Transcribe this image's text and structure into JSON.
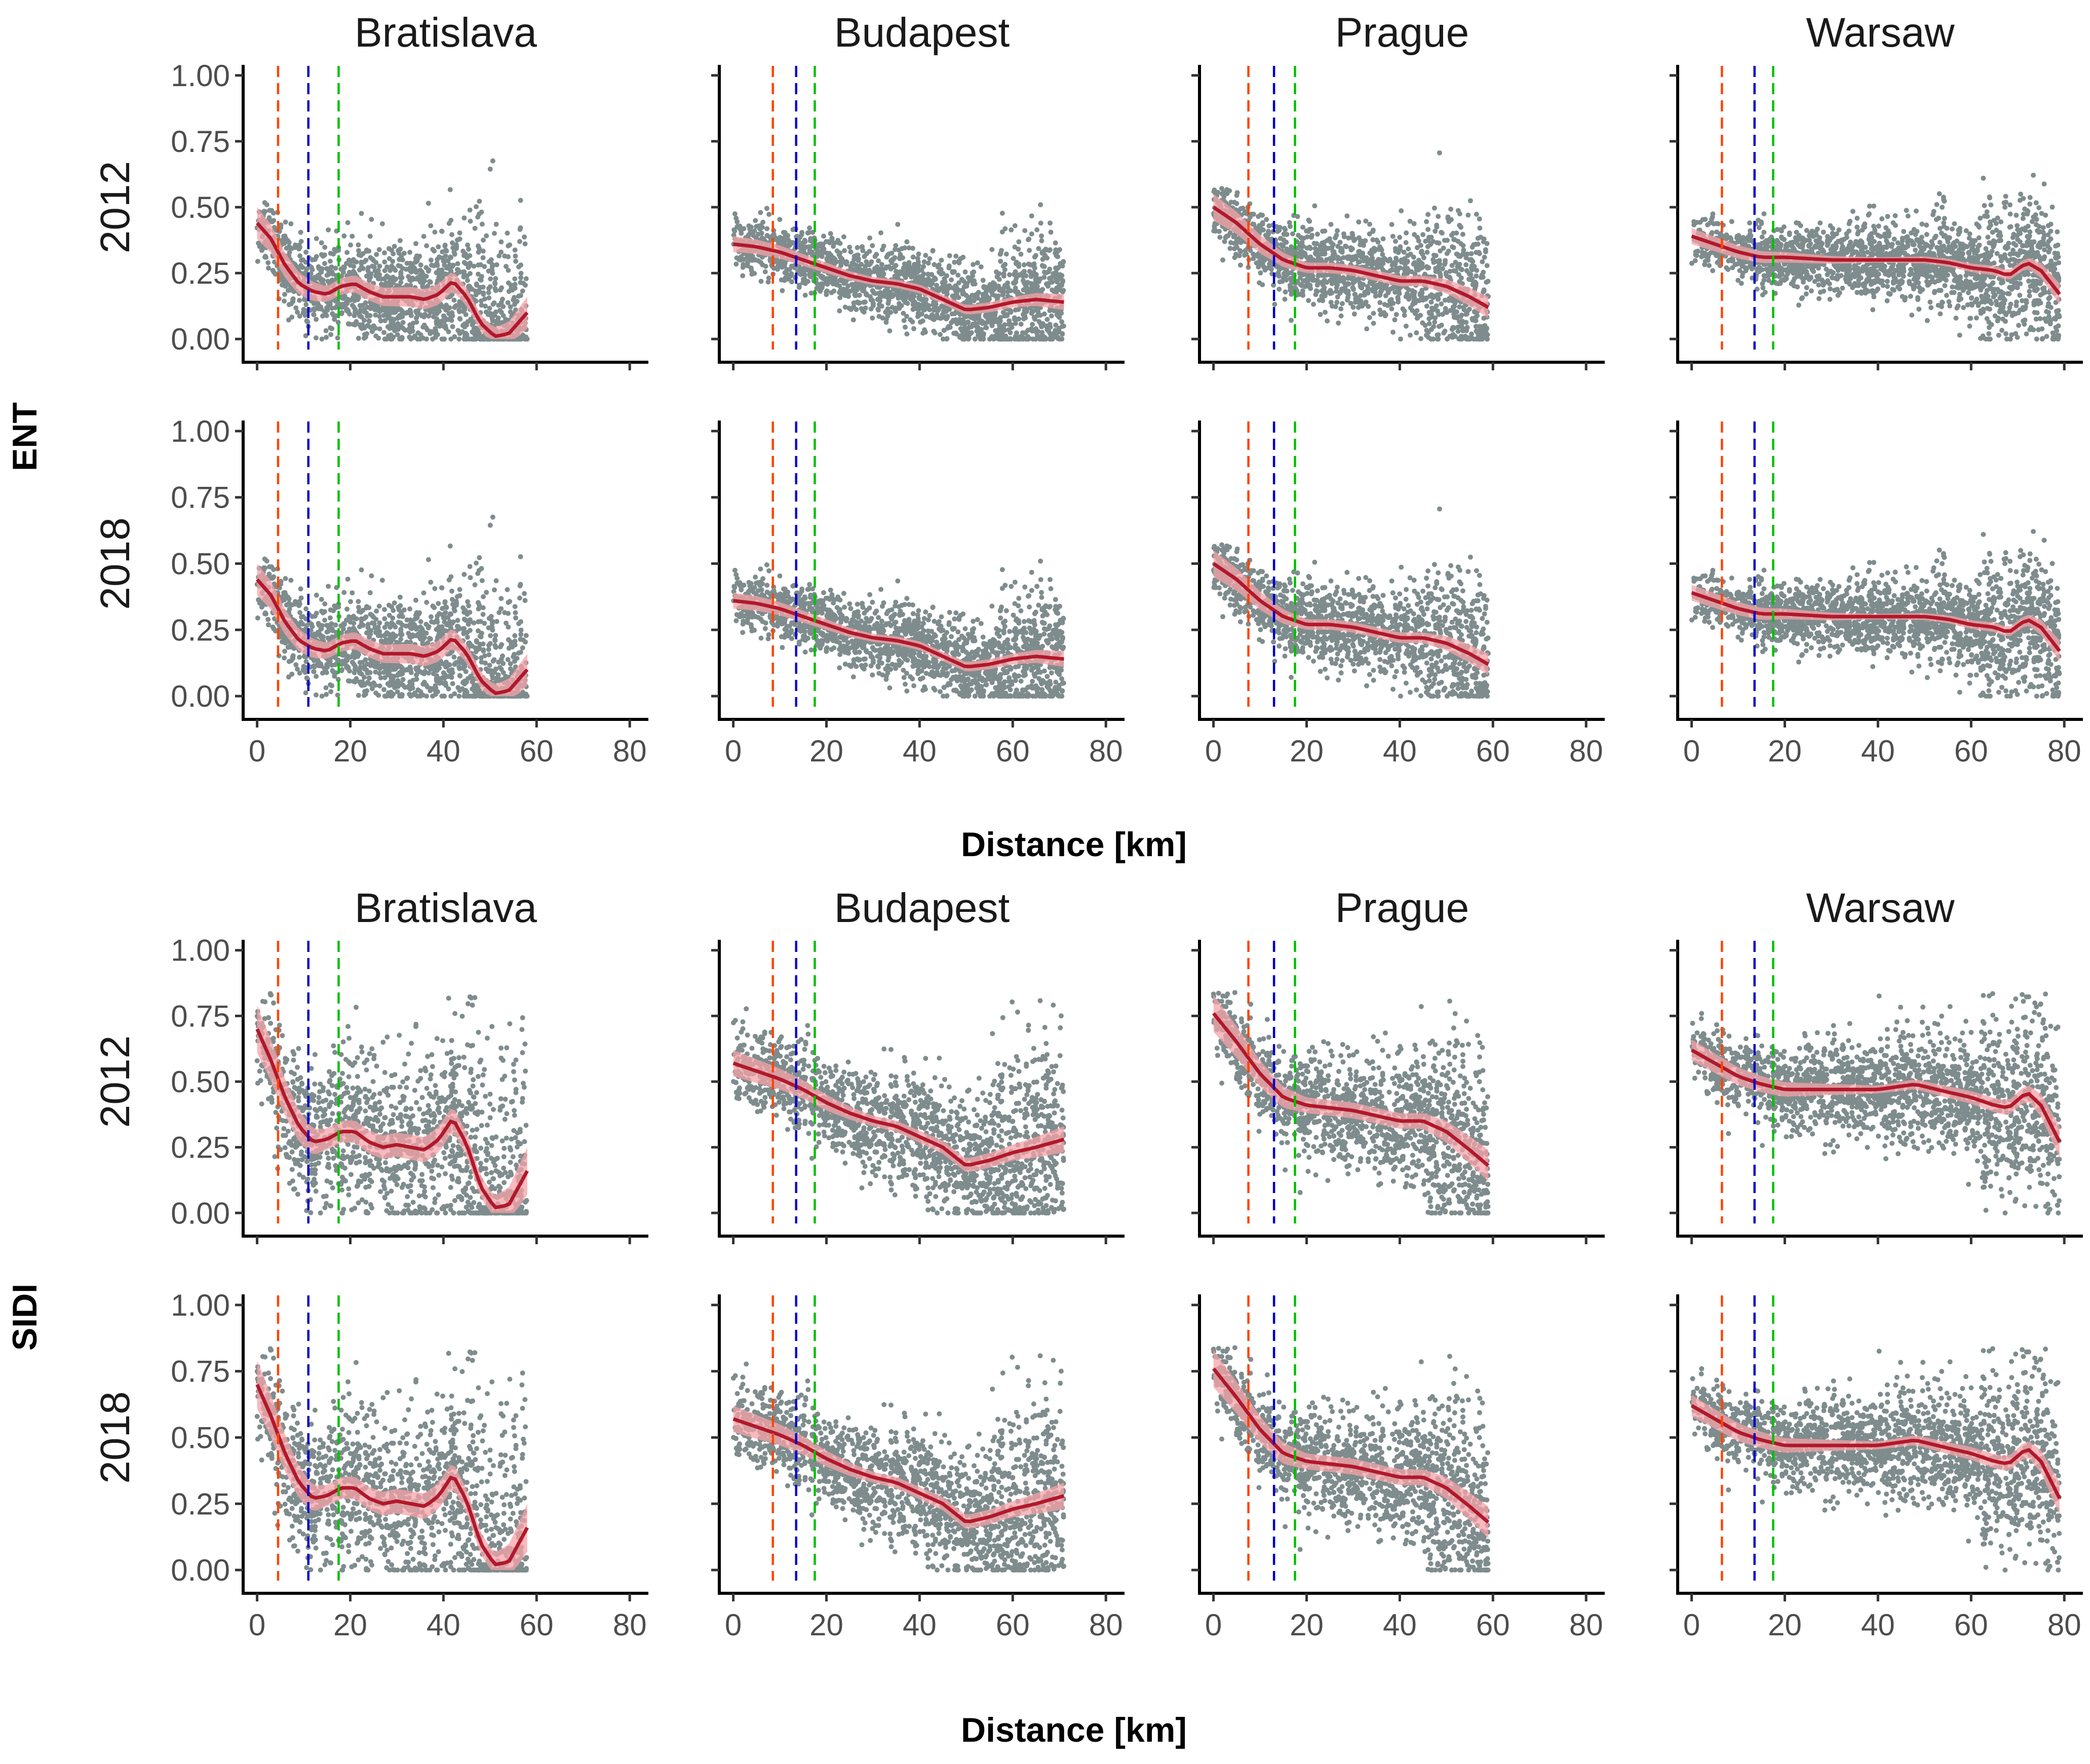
{
  "chart_data": [
    {
      "type": "scatter",
      "metric": "ENT",
      "ylabel": "ENT",
      "xlabel": "Distance [km]",
      "cities": [
        "Bratislava",
        "Budapest",
        "Prague",
        "Warsaw"
      ],
      "years": [
        "2012",
        "2018"
      ],
      "xlim": [
        -3,
        84
      ],
      "ylim": [
        -0.04,
        1.04
      ],
      "x_ticks": [
        0,
        20,
        40,
        60,
        80
      ],
      "x_tick_labels": [
        "0",
        "20",
        "40",
        "60",
        "80"
      ],
      "y_ticks": [
        0,
        0.25,
        0.5,
        0.75,
        1
      ],
      "y_tick_labels": [
        "0.00",
        "0.25",
        "0.50",
        "0.75",
        "1.00"
      ],
      "point_color": "#7f8c8d",
      "smooth_color": "#b2182b",
      "ribbon_color": "#f4a3a8",
      "vline_colors": [
        "#ff4500",
        "#0000cd",
        "#00c000"
      ],
      "panels": [
        {
          "city": "Bratislava",
          "xmax": 58,
          "spread": 0.09,
          "vlines": [
            4.5,
            11,
            17.5
          ],
          "smooth": [
            [
              0,
              0.44
            ],
            [
              3,
              0.38
            ],
            [
              6,
              0.28
            ],
            [
              9,
              0.21
            ],
            [
              12,
              0.18
            ],
            [
              15,
              0.17
            ],
            [
              18,
              0.2
            ],
            [
              21,
              0.21
            ],
            [
              24,
              0.18
            ],
            [
              27,
              0.16
            ],
            [
              30,
              0.16
            ],
            [
              33,
              0.16
            ],
            [
              36,
              0.15
            ],
            [
              39,
              0.17
            ],
            [
              42,
              0.22
            ],
            [
              45,
              0.16
            ],
            [
              48,
              0.06
            ],
            [
              51,
              0.01
            ],
            [
              54,
              0.02
            ],
            [
              58,
              0.1
            ]
          ],
          "ribbon": [
            [
              0,
              0.06
            ],
            [
              15,
              0.03
            ],
            [
              40,
              0.04
            ],
            [
              50,
              0.03
            ],
            [
              58,
              0.06
            ]
          ]
        },
        {
          "city": "Budapest",
          "xmax": 71,
          "spread": 0.06,
          "vlines": [
            8.5,
            13.5,
            17.5
          ],
          "smooth": [
            [
              0,
              0.36
            ],
            [
              5,
              0.35
            ],
            [
              10,
              0.33
            ],
            [
              15,
              0.3
            ],
            [
              20,
              0.27
            ],
            [
              25,
              0.24
            ],
            [
              30,
              0.22
            ],
            [
              35,
              0.21
            ],
            [
              40,
              0.19
            ],
            [
              45,
              0.15
            ],
            [
              50,
              0.11
            ],
            [
              55,
              0.12
            ],
            [
              60,
              0.14
            ],
            [
              65,
              0.15
            ],
            [
              71,
              0.14
            ]
          ],
          "ribbon": [
            [
              0,
              0.03
            ],
            [
              30,
              0.015
            ],
            [
              60,
              0.02
            ],
            [
              71,
              0.03
            ]
          ]
        },
        {
          "city": "Prague",
          "xmax": 59,
          "spread": 0.065,
          "vlines": [
            7.5,
            13,
            17.5
          ],
          "smooth": [
            [
              0,
              0.5
            ],
            [
              5,
              0.44
            ],
            [
              10,
              0.36
            ],
            [
              15,
              0.3
            ],
            [
              20,
              0.27
            ],
            [
              25,
              0.27
            ],
            [
              30,
              0.26
            ],
            [
              35,
              0.24
            ],
            [
              40,
              0.22
            ],
            [
              45,
              0.22
            ],
            [
              50,
              0.2
            ],
            [
              55,
              0.16
            ],
            [
              59,
              0.12
            ]
          ],
          "ribbon": [
            [
              0,
              0.05
            ],
            [
              20,
              0.02
            ],
            [
              45,
              0.02
            ],
            [
              59,
              0.04
            ]
          ]
        },
        {
          "city": "Warsaw",
          "xmax": 79,
          "spread": 0.06,
          "vlines": [
            6.5,
            13.5,
            17.5
          ],
          "smooth": [
            [
              0,
              0.39
            ],
            [
              5,
              0.36
            ],
            [
              10,
              0.33
            ],
            [
              15,
              0.31
            ],
            [
              20,
              0.31
            ],
            [
              30,
              0.3
            ],
            [
              40,
              0.3
            ],
            [
              50,
              0.3
            ],
            [
              55,
              0.29
            ],
            [
              60,
              0.27
            ],
            [
              65,
              0.26
            ],
            [
              68,
              0.24
            ],
            [
              72,
              0.29
            ],
            [
              75,
              0.26
            ],
            [
              79,
              0.17
            ]
          ],
          "ribbon": [
            [
              0,
              0.03
            ],
            [
              40,
              0.01
            ],
            [
              72,
              0.02
            ],
            [
              79,
              0.04
            ]
          ]
        }
      ]
    },
    {
      "type": "scatter",
      "metric": "SIDI",
      "ylabel": "SIDI",
      "xlabel": "Distance [km]",
      "cities": [
        "Bratislava",
        "Budapest",
        "Prague",
        "Warsaw"
      ],
      "years": [
        "2012",
        "2018"
      ],
      "xlim": [
        -3,
        84
      ],
      "ylim": [
        -0.04,
        1.04
      ],
      "x_ticks": [
        0,
        20,
        40,
        60,
        80
      ],
      "x_tick_labels": [
        "0",
        "20",
        "40",
        "60",
        "80"
      ],
      "y_ticks": [
        0,
        0.25,
        0.5,
        0.75,
        1
      ],
      "y_tick_labels": [
        "0.00",
        "0.25",
        "0.50",
        "0.75",
        "1.00"
      ],
      "point_color": "#7f8c8d",
      "smooth_color": "#b2182b",
      "ribbon_color": "#f4a3a8",
      "vline_colors": [
        "#ff4500",
        "#0000cd",
        "#00c000"
      ],
      "panels": [
        {
          "city": "Bratislava",
          "xmax": 58,
          "spread": 0.14,
          "vlines": [
            4.5,
            11,
            17.5
          ],
          "smooth": [
            [
              0,
              0.7
            ],
            [
              3,
              0.58
            ],
            [
              6,
              0.44
            ],
            [
              9,
              0.33
            ],
            [
              12,
              0.27
            ],
            [
              15,
              0.28
            ],
            [
              18,
              0.31
            ],
            [
              21,
              0.31
            ],
            [
              24,
              0.27
            ],
            [
              27,
              0.25
            ],
            [
              30,
              0.26
            ],
            [
              33,
              0.25
            ],
            [
              36,
              0.24
            ],
            [
              39,
              0.28
            ],
            [
              42,
              0.36
            ],
            [
              45,
              0.26
            ],
            [
              48,
              0.1
            ],
            [
              51,
              0.02
            ],
            [
              54,
              0.03
            ],
            [
              58,
              0.16
            ]
          ],
          "ribbon": [
            [
              0,
              0.09
            ],
            [
              15,
              0.04
            ],
            [
              40,
              0.05
            ],
            [
              50,
              0.04
            ],
            [
              58,
              0.09
            ]
          ]
        },
        {
          "city": "Budapest",
          "xmax": 71,
          "spread": 0.09,
          "vlines": [
            8.5,
            13.5,
            17.5
          ],
          "smooth": [
            [
              0,
              0.57
            ],
            [
              5,
              0.54
            ],
            [
              10,
              0.51
            ],
            [
              15,
              0.47
            ],
            [
              20,
              0.42
            ],
            [
              25,
              0.38
            ],
            [
              30,
              0.35
            ],
            [
              35,
              0.33
            ],
            [
              40,
              0.29
            ],
            [
              45,
              0.25
            ],
            [
              50,
              0.18
            ],
            [
              55,
              0.2
            ],
            [
              60,
              0.23
            ],
            [
              65,
              0.25
            ],
            [
              71,
              0.28
            ]
          ],
          "ribbon": [
            [
              0,
              0.05
            ],
            [
              30,
              0.02
            ],
            [
              60,
              0.03
            ],
            [
              71,
              0.05
            ]
          ]
        },
        {
          "city": "Prague",
          "xmax": 59,
          "spread": 0.09,
          "vlines": [
            7.5,
            13,
            17.5
          ],
          "smooth": [
            [
              0,
              0.76
            ],
            [
              5,
              0.65
            ],
            [
              10,
              0.53
            ],
            [
              15,
              0.44
            ],
            [
              20,
              0.41
            ],
            [
              25,
              0.4
            ],
            [
              30,
              0.39
            ],
            [
              35,
              0.37
            ],
            [
              40,
              0.35
            ],
            [
              45,
              0.35
            ],
            [
              50,
              0.31
            ],
            [
              55,
              0.24
            ],
            [
              59,
              0.18
            ]
          ],
          "ribbon": [
            [
              0,
              0.07
            ],
            [
              20,
              0.03
            ],
            [
              45,
              0.03
            ],
            [
              59,
              0.06
            ]
          ]
        },
        {
          "city": "Warsaw",
          "xmax": 79,
          "spread": 0.08,
          "vlines": [
            6.5,
            13.5,
            17.5
          ],
          "smooth": [
            [
              0,
              0.62
            ],
            [
              5,
              0.57
            ],
            [
              10,
              0.52
            ],
            [
              15,
              0.49
            ],
            [
              20,
              0.47
            ],
            [
              30,
              0.47
            ],
            [
              40,
              0.47
            ],
            [
              48,
              0.49
            ],
            [
              55,
              0.46
            ],
            [
              60,
              0.44
            ],
            [
              65,
              0.41
            ],
            [
              68,
              0.4
            ],
            [
              72,
              0.46
            ],
            [
              75,
              0.41
            ],
            [
              79,
              0.27
            ]
          ],
          "ribbon": [
            [
              0,
              0.04
            ],
            [
              40,
              0.015
            ],
            [
              72,
              0.03
            ],
            [
              79,
              0.06
            ]
          ]
        }
      ]
    }
  ]
}
